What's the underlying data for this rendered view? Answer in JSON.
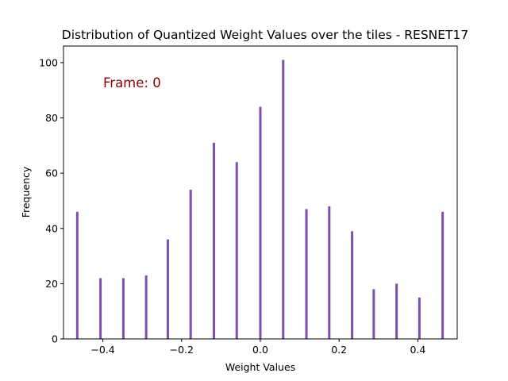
{
  "chart_data": {
    "type": "bar",
    "title": "Distribution of Quantized Weight Values over the tiles - RESNET17",
    "xlabel": "Weight Values",
    "ylabel": "Frequency",
    "annotation": "Frame: 0",
    "xlim": [
      -0.5,
      0.5
    ],
    "ylim": [
      0,
      106
    ],
    "xticks": [
      -0.4,
      -0.2,
      0.0,
      0.2,
      0.4
    ],
    "xtick_labels": [
      "−0.4",
      "−0.2",
      "0.0",
      "0.2",
      "0.4"
    ],
    "yticks": [
      0,
      20,
      40,
      60,
      80,
      100
    ],
    "ytick_labels": [
      "0",
      "20",
      "40",
      "60",
      "80",
      "100"
    ],
    "grid": false,
    "bar_color": "#7f4fb0",
    "x": [
      -0.465,
      -0.406,
      -0.348,
      -0.29,
      -0.235,
      -0.177,
      -0.118,
      -0.06,
      0.0,
      0.058,
      0.117,
      0.175,
      0.233,
      0.288,
      0.346,
      0.404,
      0.463
    ],
    "values": [
      46,
      22,
      22,
      23,
      36,
      54,
      71,
      64,
      84,
      101,
      47,
      48,
      39,
      18,
      20,
      15,
      46
    ]
  }
}
